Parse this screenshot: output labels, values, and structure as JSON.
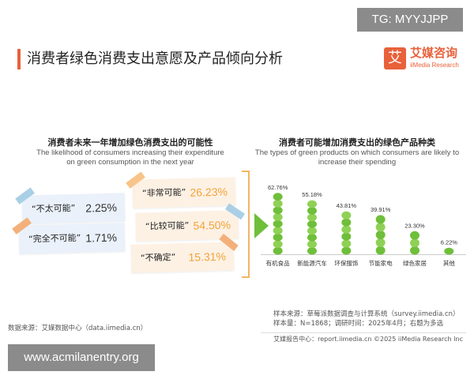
{
  "watermark_top": "TG: MYYJJPP",
  "title": "消费者绿色消费支出意愿及产品倾向分析",
  "logo": {
    "cn": "艾媒咨询",
    "en": "iiMedia Research",
    "mark": "艾"
  },
  "left": {
    "title_cn": "消费者未来一年增加绿色消费支出的可能性",
    "title_en_1": "The likelihood of consumers increasing their expenditure",
    "title_en_2": "on green consumption in the next year",
    "items": [
      {
        "label": "“非常可能”",
        "value": "26.23%"
      },
      {
        "label": "“比较可能”",
        "value": "54.50%"
      },
      {
        "label": "“不确定”",
        "value": "15.31%"
      },
      {
        "label": "“不太可能”",
        "value": "2.25%"
      },
      {
        "label": "“完全不可能”",
        "value": "1.71%"
      }
    ]
  },
  "chart_data": {
    "type": "bar",
    "title": "消费者可能增加消费支出的绿色产品种类",
    "subtitle": "The types of green products on which consumers are likely to increase their spending",
    "categories": [
      "有机食品",
      "新能源汽车",
      "环保服饰",
      "节能家电",
      "绿色家居",
      "其他"
    ],
    "values": [
      62.76,
      55.18,
      43.81,
      39.91,
      23.3,
      6.22
    ],
    "value_labels": [
      "62.76%",
      "55.18%",
      "43.81%",
      "39.91%",
      "23.30%",
      "6.22%"
    ],
    "ylim": [
      0,
      70
    ],
    "colors": {
      "bar": "#6fbf3a",
      "dot": "#8fd155"
    }
  },
  "source_left": "数据来源：艾媒数据中心（data.iimedia.cn）",
  "source_right_1": "样本来源：草莓派数据调查与计算系统（survey.iimedia.cn）",
  "source_right_2": "样本量：N=1868；调研时间：2025年4月；右题为多选",
  "footer": "艾媒报告中心：report.iimedia.cn    ©2025  iiMedia Research  Inc",
  "watermark_bottom": "www.acmilanentry.org"
}
